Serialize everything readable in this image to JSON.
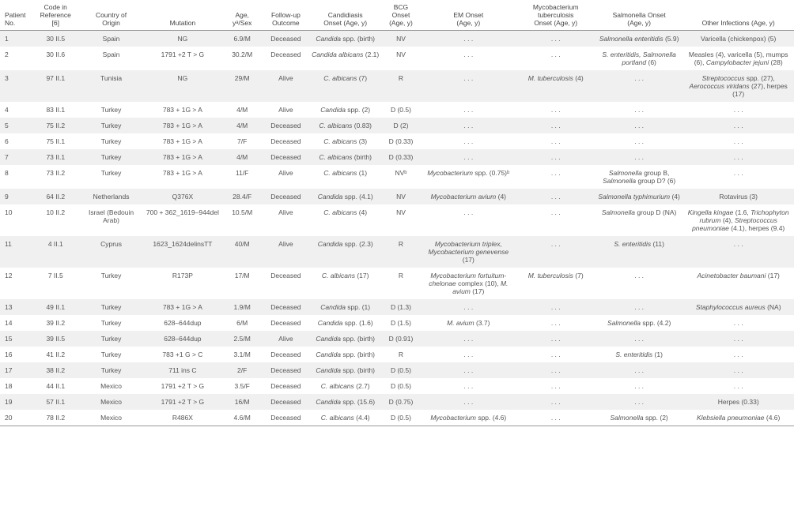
{
  "columns": [
    {
      "label": "Patient\nNo.",
      "width": "4%"
    },
    {
      "label": "Code in\nReference\n[6]",
      "width": "6%"
    },
    {
      "label": "Country of\nOrigin",
      "width": "8%"
    },
    {
      "label": "Mutation",
      "width": "10%"
    },
    {
      "label": "Age,\nyᵃ/Sex",
      "width": "5%"
    },
    {
      "label": "Follow-up\nOutcome",
      "width": "6%"
    },
    {
      "label": "Candidiasis\nOnset (Age, y)",
      "width": "9%"
    },
    {
      "label": "BCG\nOnset\n(Age, y)",
      "width": "5%"
    },
    {
      "label": "EM Onset\n(Age, y)",
      "width": "12%"
    },
    {
      "label": "Mycobacterium\ntuberculosis\nOnset (Age, y)",
      "width": "10%"
    },
    {
      "label": "Salmonella Onset\n(Age, y)",
      "width": "11%"
    },
    {
      "label": "Other Infections (Age, y)",
      "width": "14%"
    }
  ],
  "rows": [
    [
      "1",
      "30 II.5",
      "Spain",
      "NG",
      "6.9/M",
      "Deceased",
      "<i>Candida</i> spp. (birth)",
      "NV",
      ". . .",
      ". . .",
      "<i>Salmonella enteritidis</i> (5.9)",
      "Varicella (chickenpox) (5)"
    ],
    [
      "2",
      "30 II.6",
      "Spain",
      "1791 +2 T > G",
      "30.2/M",
      "Deceased",
      "<i>Candida albicans</i> (2.1)",
      "NV",
      ". . .",
      ". . .",
      "<i>S. enteritidis, Salmonella portland</i> (6)",
      "Measles (4), varicella (5), mumps (6), <i>Campylobacter jejuni</i> (28)"
    ],
    [
      "3",
      "97 II.1",
      "Tunisia",
      "NG",
      "29/M",
      "Alive",
      "<i>C. albicans</i> (7)",
      "R",
      ". . .",
      "<i>M. tuberculosis</i> (4)",
      ". . .",
      "<i>Streptococcus</i> spp. (27), <i>Aerococcus viridans</i> (27), herpes (17)"
    ],
    [
      "4",
      "83 II.1",
      "Turkey",
      "783 + 1G > A",
      "4/M",
      "Alive",
      "<i>Candida</i> spp. (2)",
      "D (0.5)",
      ". . .",
      ". . .",
      ". . .",
      ". . ."
    ],
    [
      "5",
      "75 II.2",
      "Turkey",
      "783 + 1G > A",
      "4/M",
      "Deceased",
      "<i>C. albicans</i> (0.83)",
      "D (2)",
      ". . .",
      ". . .",
      ". . .",
      ". . ."
    ],
    [
      "6",
      "75 II.1",
      "Turkey",
      "783 + 1G > A",
      "7/F",
      "Deceased",
      "<i>C. albicans</i> (3)",
      "D (0.33)",
      ". . .",
      ". . .",
      ". . .",
      ". . ."
    ],
    [
      "7",
      "73 II.1",
      "Turkey",
      "783 + 1G > A",
      "4/M",
      "Deceased",
      "<i>C. albicans</i> (birth)",
      "D (0.33)",
      ". . .",
      ". . .",
      ". . .",
      ". . ."
    ],
    [
      "8",
      "73 II.2",
      "Turkey",
      "783 + 1G > A",
      "11/F",
      "Alive",
      "<i>C. albicans</i> (1)",
      "NVᵇ",
      "<i>Mycobacterium</i> spp. (0.75)ᵇ",
      ". . .",
      "<i>Salmonella</i> group B, <i>Salmonella</i> group D? (6)",
      ". . ."
    ],
    [
      "9",
      "64 II.2",
      "Netherlands",
      "Q376X",
      "28.4/F",
      "Deceased",
      "<i>Candida</i> spp. (4.1)",
      "NV",
      "<i>Mycobacterium avium</i> (4)",
      ". . .",
      "<i>Salmonella typhimurium</i> (4)",
      "Rotavirus (3)"
    ],
    [
      "10",
      "10 II.2",
      "Israel (Bedouin Arab)",
      "700 + 362_1619–944del",
      "10.5/M",
      "Alive",
      "<i>C. albicans</i> (4)",
      "NV",
      ". . .",
      ". . .",
      "<i>Salmonella</i> group D (NA)",
      "<i>Kingella kingae</i> (1.6, <i>Trichophyton rubrum</i> (4), <i>Streptococcus pneumoniae</i> (4.1), herpes (9.4)"
    ],
    [
      "11",
      "4 II.1",
      "Cyprus",
      "1623_1624delinsTT",
      "40/M",
      "Alive",
      "<i>Candida</i> spp. (2.3)",
      "R",
      "<i>Mycobacterium triplex, Mycobacterium genevense</i> (17)",
      ". . .",
      "<i>S. enteritidis</i> (11)",
      ". . ."
    ],
    [
      "12",
      "7 II.5",
      "Turkey",
      "R173P",
      "17/M",
      "Deceased",
      "<i>C. albicans</i> (17)",
      "R",
      "<i>Mycobacterium fortuitum-chelonae</i> complex (10), <i>M. avium</i> (17)",
      "<i>M. tuberculosis</i> (7)",
      ". . .",
      "<i>Acinetobacter baumani</i> (17)"
    ],
    [
      "13",
      "49 II.1",
      "Turkey",
      "783 + 1G > A",
      "1.9/M",
      "Deceased",
      "<i>Candida</i> spp. (1)",
      "D (1.3)",
      ". . .",
      ". . .",
      ". . .",
      "<i>Staphylococcus aureus</i> (NA)"
    ],
    [
      "14",
      "39 II.2",
      "Turkey",
      "628–644dup",
      "6/M",
      "Deceased",
      "<i>Candida</i> spp. (1.6)",
      "D (1.5)",
      "<i>M. avium</i> (3.7)",
      ". . .",
      "<i>Salmonella</i> spp. (4.2)",
      ". . ."
    ],
    [
      "15",
      "39 II.5",
      "Turkey",
      "628–644dup",
      "2.5/M",
      "Alive",
      "<i>Candida</i> spp. (birth)",
      "D (0.91)",
      ". . .",
      ". . .",
      ". . .",
      ". . ."
    ],
    [
      "16",
      "41 II.2",
      "Turkey",
      "783 +1 G > C",
      "3.1/M",
      "Deceased",
      "<i>Candida</i> spp. (birth)",
      "R",
      ". . .",
      ". . .",
      "<i>S. enteritidis</i> (1)",
      ". . ."
    ],
    [
      "17",
      "38 II.2",
      "Turkey",
      "711 ins C",
      "2/F",
      "Deceased",
      "<i>Candida</i> spp. (birth)",
      "D (0.5)",
      ". . .",
      ". . .",
      ". . .",
      ". . ."
    ],
    [
      "18",
      "44 II.1",
      "Mexico",
      "1791 +2 T > G",
      "3.5/F",
      "Deceased",
      "<i>C. albicans</i> (2.7)",
      "D (0.5)",
      ". . .",
      ". . .",
      ". . .",
      ". . ."
    ],
    [
      "19",
      "57 II.1",
      "Mexico",
      "1791 +2 T > G",
      "16/M",
      "Deceased",
      "<i>Candida</i> spp. (15.6)",
      "D (0.75)",
      ". . .",
      ". . .",
      ". . .",
      "Herpes (0.33)"
    ],
    [
      "20",
      "78 II.2",
      "Mexico",
      "R486X",
      "4.6/M",
      "Deceased",
      "<i>C. albicans</i> (4.4)",
      "D (0.5)",
      "<i>Mycobacterium</i> spp. (4.6)",
      ". . .",
      "<i>Salmonella</i> spp. (2)",
      "<i>Klebsiella pneumoniae</i> (4.6)"
    ]
  ]
}
